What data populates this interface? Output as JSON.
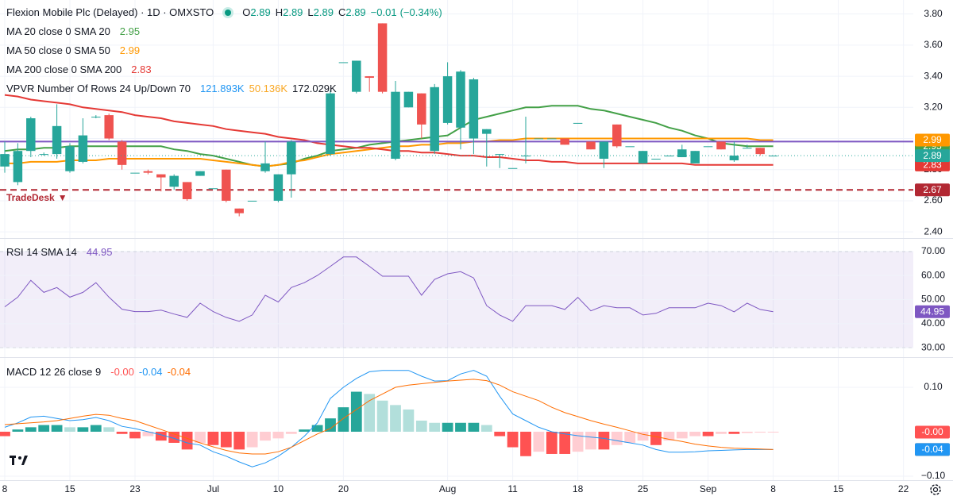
{
  "header": {
    "title": "Flexion Mobile Plc (Delayed) · 1D · OMXSTO",
    "ohlc": [
      {
        "label": "O",
        "value": 2.89
      },
      {
        "label": "H",
        "value": 2.89
      },
      {
        "label": "L",
        "value": 2.89
      },
      {
        "label": "C",
        "value": 2.89
      }
    ],
    "change": [
      {
        "value": -0.01,
        "label": "−0.01"
      },
      {
        "value": -0.34,
        "label": "(−0.34%)"
      }
    ],
    "change_color": "#089981"
  },
  "vpvr": {
    "name": "VPVR Number Of Rows 24 Up/Down 70",
    "values": [
      {
        "value": 121893,
        "label": "121.893K"
      },
      {
        "value": 50136,
        "label": "50.136K"
      },
      {
        "value": 172029,
        "label": "172.029K"
      }
    ],
    "colors": [
      "#2196f3",
      "#f9a825",
      "#131722"
    ]
  },
  "chart_data": [
    {
      "type": "candlestick",
      "categories": [
        "8",
        null,
        null,
        null,
        null,
        "15",
        null,
        null,
        null,
        null,
        "23",
        null,
        null,
        null,
        null,
        null,
        "Jul",
        null,
        null,
        null,
        null,
        "10",
        null,
        null,
        null,
        null,
        "20",
        null,
        null,
        null,
        null,
        null,
        null,
        null,
        "Aug",
        null,
        null,
        null,
        null,
        "11",
        null,
        null,
        null,
        null,
        "18",
        null,
        null,
        null,
        null,
        "25",
        null,
        null,
        null,
        null,
        "Sep",
        null,
        null,
        null,
        null,
        "8",
        null,
        null,
        null,
        null,
        "15",
        null,
        null,
        null,
        null,
        "22"
      ],
      "open": [
        2.82,
        2.72,
        2.92,
        2.9,
        2.9,
        2.79,
        2.85,
        3.14,
        3.15,
        2.98,
        2.78,
        2.79,
        2.77,
        2.69,
        2.72,
        2.76,
        2.68,
        2.8,
        2.55,
        2.6,
        2.79,
        2.6,
        2.77,
        null,
        null,
        2.9,
        3.49,
        3.3,
        3.4,
        3.74,
        2.87,
        3.2,
        3.29,
        2.92,
        3.1,
        3.07,
        3.0,
        3.03,
        2.9,
        2.81,
        2.89,
        3.0,
        3.0,
        3.0,
        3.1,
        2.98,
        2.87,
        3.09,
        2.95,
        2.84,
        2.87,
        2.89,
        2.88,
        2.84,
        2.95,
        2.98,
        2.86,
        2.94,
        2.94,
        2.89,
        null,
        null,
        null,
        null,
        null,
        null,
        null,
        null,
        null,
        null
      ],
      "high": [
        2.98,
        2.97,
        3.14,
        2.91,
        3.22,
        2.97,
        3.13,
        3.15,
        3.16,
        2.99,
        2.78,
        2.8,
        2.77,
        2.77,
        2.72,
        2.79,
        2.68,
        2.8,
        2.55,
        2.6,
        2.98,
        2.77,
        2.99,
        null,
        null,
        3.31,
        3.49,
        3.5,
        3.4,
        3.74,
        3.37,
        3.3,
        3.29,
        3.35,
        3.49,
        3.44,
        3.39,
        3.06,
        2.9,
        2.81,
        3.14,
        3.0,
        3.0,
        3.0,
        3.1,
        2.98,
        2.98,
        3.09,
        2.95,
        2.92,
        2.87,
        2.89,
        2.96,
        2.92,
        2.95,
        2.98,
        2.98,
        2.96,
        2.94,
        2.89,
        null,
        null,
        null,
        null,
        null,
        null,
        null,
        null,
        null,
        null
      ],
      "low": [
        2.78,
        2.7,
        2.88,
        2.89,
        2.87,
        2.78,
        2.84,
        3.13,
        2.99,
        2.8,
        2.78,
        2.77,
        2.66,
        2.67,
        2.6,
        2.76,
        2.68,
        2.59,
        2.5,
        2.6,
        2.78,
        2.59,
        2.62,
        null,
        null,
        2.89,
        3.49,
        3.29,
        3.3,
        3.29,
        2.86,
        3.2,
        3.0,
        2.9,
        3.09,
        2.93,
        2.9,
        2.82,
        2.81,
        2.81,
        2.84,
        3.0,
        3.0,
        2.96,
        3.1,
        2.93,
        2.81,
        2.94,
        2.95,
        2.84,
        2.87,
        2.89,
        2.88,
        2.84,
        2.95,
        2.93,
        2.85,
        2.94,
        2.89,
        2.89,
        null,
        null,
        null,
        null,
        null,
        null,
        null,
        null,
        null,
        null
      ],
      "close": [
        2.9,
        2.92,
        3.13,
        2.9,
        3.08,
        2.95,
        3.02,
        3.14,
        3.0,
        2.83,
        2.78,
        2.78,
        2.75,
        2.76,
        2.61,
        2.79,
        2.68,
        2.6,
        2.52,
        2.6,
        2.84,
        2.77,
        2.98,
        null,
        null,
        3.29,
        3.49,
        3.5,
        3.39,
        3.3,
        3.3,
        3.3,
        3.09,
        3.33,
        3.4,
        3.43,
        3.38,
        3.06,
        2.9,
        2.81,
        2.89,
        3.0,
        3.0,
        2.96,
        3.1,
        2.93,
        2.98,
        2.95,
        2.95,
        2.92,
        2.87,
        2.89,
        2.93,
        2.92,
        2.95,
        2.93,
        2.89,
        2.94,
        2.9,
        2.89,
        null,
        null,
        null,
        null,
        null,
        null,
        null,
        null,
        null,
        null
      ],
      "up_color": "#26a69a",
      "down_color": "#ef5350",
      "ylim": [
        2.36,
        3.89
      ],
      "yticks": [
        {
          "value": 2.4,
          "label": "2.40"
        },
        {
          "value": 2.6,
          "label": "2.60"
        },
        {
          "value": 2.8,
          "label": "2.80"
        },
        {
          "value": 3.0,
          "label": "3.00"
        },
        {
          "value": 3.2,
          "label": "3.20"
        },
        {
          "value": 3.4,
          "label": "3.40"
        },
        {
          "value": 3.6,
          "label": "3.60"
        },
        {
          "value": 3.8,
          "label": "3.80"
        }
      ],
      "grid": true,
      "series": [
        {
          "name": "MA 20 close 0 SMA 20",
          "color": "#43a047",
          "last": 2.95,
          "values": [
            2.92,
            2.93,
            2.93,
            2.94,
            2.94,
            2.95,
            2.95,
            2.95,
            2.95,
            2.95,
            2.95,
            2.95,
            2.95,
            2.93,
            2.92,
            2.9,
            2.89,
            2.87,
            2.85,
            2.83,
            2.82,
            2.83,
            2.84,
            2.87,
            2.89,
            2.92,
            2.93,
            2.94,
            2.96,
            2.97,
            2.98,
            2.99,
            3.0,
            3.01,
            3.02,
            3.07,
            3.12,
            3.14,
            3.16,
            3.18,
            3.2,
            3.2,
            3.21,
            3.21,
            3.21,
            3.19,
            3.18,
            3.16,
            3.14,
            3.12,
            3.1,
            3.07,
            3.05,
            3.02,
            3.0,
            2.97,
            2.96,
            2.95,
            2.95,
            2.95,
            null,
            null,
            null,
            null,
            null,
            null,
            null,
            null,
            null,
            null
          ]
        },
        {
          "name": "MA 50 close 0 SMA 50",
          "color": "#ff9800",
          "last": 2.99,
          "values": [
            2.84,
            2.84,
            2.85,
            2.85,
            2.85,
            2.86,
            2.86,
            2.86,
            2.87,
            2.87,
            2.87,
            2.87,
            2.87,
            2.87,
            2.87,
            2.87,
            2.86,
            2.85,
            2.84,
            2.83,
            2.82,
            2.83,
            2.85,
            2.86,
            2.88,
            2.9,
            2.91,
            2.92,
            2.93,
            2.94,
            2.95,
            2.95,
            2.96,
            2.96,
            2.97,
            2.97,
            2.98,
            2.98,
            2.99,
            2.99,
            3.0,
            3.0,
            3.0,
            3.0,
            3.0,
            3.0,
            3.0,
            3.0,
            3.0,
            3.0,
            3.0,
            3.0,
            3.0,
            3.0,
            3.0,
            3.0,
            3.0,
            3.0,
            2.99,
            2.99,
            null,
            null,
            null,
            null,
            null,
            null,
            null,
            null,
            null,
            null
          ]
        },
        {
          "name": "MA 200 close 0 SMA 200",
          "color": "#e53935",
          "last": 2.83,
          "values": [
            3.28,
            3.27,
            3.25,
            3.24,
            3.23,
            3.22,
            3.2,
            3.19,
            3.18,
            3.17,
            3.15,
            3.14,
            3.13,
            3.11,
            3.1,
            3.09,
            3.08,
            3.06,
            3.05,
            3.04,
            3.03,
            3.01,
            3.0,
            2.99,
            2.97,
            2.96,
            2.95,
            2.94,
            2.94,
            2.93,
            2.92,
            2.92,
            2.91,
            2.91,
            2.9,
            2.89,
            2.89,
            2.88,
            2.88,
            2.87,
            2.86,
            2.86,
            2.85,
            2.85,
            2.84,
            2.84,
            2.84,
            2.84,
            2.84,
            2.84,
            2.84,
            2.84,
            2.84,
            2.83,
            2.83,
            2.83,
            2.83,
            2.83,
            2.83,
            2.83,
            null,
            null,
            null,
            null,
            null,
            null,
            null,
            null,
            null,
            null
          ]
        }
      ],
      "last_color": "#26a69a",
      "lines": [
        {
          "value": 2.98,
          "color": "#7e57c2"
        },
        {
          "name": "TradeDesk",
          "marker": "▼",
          "value": 2.67,
          "color": "#b22833",
          "dashed": true
        }
      ]
    },
    {
      "type": "line",
      "series": [
        {
          "name": "RSI 14 SMA 14",
          "color": "#7e57c2",
          "values": [
            47,
            51,
            58,
            53,
            55,
            51,
            53,
            57,
            51,
            46,
            45,
            45,
            45.6,
            44,
            42.6,
            48.5,
            45,
            42.6,
            41,
            43.6,
            51.8,
            49,
            55,
            57,
            60,
            63.8,
            67.7,
            67.7,
            63.8,
            59.7,
            59.7,
            59.7,
            51.8,
            58.4,
            60.7,
            61.6,
            59,
            47.5,
            43.6,
            41,
            47.5,
            47.5,
            47.5,
            45.9,
            50.9,
            45.3,
            47.5,
            46.6,
            46.6,
            43.6,
            44.3,
            46.6,
            46.6,
            46.6,
            48.5,
            47.5,
            44.9,
            48.5,
            45.9,
            44.95,
            null,
            null,
            null,
            null,
            null,
            null,
            null,
            null,
            null,
            null
          ]
        }
      ],
      "ylim": [
        26.1,
        75.2
      ],
      "yticks": [
        {
          "value": 30,
          "label": "30.00"
        },
        {
          "value": 40,
          "label": "40.00"
        },
        {
          "value": 50,
          "label": "50.00"
        },
        {
          "value": 60,
          "label": "60.00"
        },
        {
          "value": 70,
          "label": "70.00"
        }
      ],
      "band": [
        30,
        70
      ],
      "band_color": "#7e57c2"
    },
    {
      "type": "macd",
      "name": "MACD 12 26 close 9",
      "histogram": {
        "values": [
          -0.01,
          0.005,
          0.01,
          0.015,
          0.015,
          0.01,
          0.01,
          0.015,
          0.01,
          -0.005,
          -0.015,
          -0.01,
          -0.02,
          -0.025,
          -0.04,
          -0.025,
          -0.03,
          -0.035,
          -0.04,
          -0.035,
          -0.02,
          -0.015,
          -0.005,
          0.005,
          0.015,
          0.03,
          0.055,
          0.09,
          0.085,
          0.07,
          0.06,
          0.05,
          0.025,
          0.02,
          0.02,
          0.02,
          0.02,
          0.015,
          -0.01,
          -0.035,
          -0.055,
          -0.045,
          -0.05,
          -0.05,
          -0.045,
          -0.04,
          -0.04,
          -0.03,
          -0.025,
          -0.02,
          -0.03,
          -0.02,
          -0.015,
          -0.01,
          -0.01,
          -0.005,
          -0.005,
          -0.003,
          -0.002,
          -0.001,
          null,
          null,
          null,
          null,
          null,
          null,
          null,
          null,
          null,
          null
        ],
        "last_label": "-0.00",
        "colors": [
          "#26a69a",
          "#b2dfdb",
          "#ffcdd2",
          "#ff5252"
        ]
      },
      "series": [
        {
          "color": "#2196f3",
          "values": [
            0.01,
            0.02,
            0.033,
            0.035,
            0.03,
            0.025,
            0.027,
            0.032,
            0.025,
            0.012,
            0.007,
            0.0,
            -0.007,
            -0.015,
            -0.025,
            -0.03,
            -0.045,
            -0.055,
            -0.068,
            -0.079,
            -0.07,
            -0.055,
            -0.035,
            -0.01,
            0.02,
            0.075,
            0.1,
            0.12,
            0.135,
            0.138,
            0.138,
            0.138,
            0.125,
            0.114,
            0.115,
            0.13,
            0.138,
            0.125,
            0.08,
            0.04,
            0.025,
            0.01,
            0.0,
            -0.005,
            -0.009,
            -0.012,
            -0.015,
            -0.02,
            -0.025,
            -0.03,
            -0.04,
            -0.046,
            -0.046,
            -0.045,
            -0.043,
            -0.042,
            -0.041,
            -0.04,
            -0.04,
            -0.04,
            null,
            null,
            null,
            null,
            null,
            null,
            null,
            null,
            null,
            null
          ]
        },
        {
          "color": "#ff6d00",
          "values": [
            0.016,
            0.018,
            0.02,
            0.022,
            0.025,
            0.03,
            0.035,
            0.039,
            0.037,
            0.03,
            0.025,
            0.015,
            0.005,
            -0.005,
            -0.015,
            -0.025,
            -0.034,
            -0.042,
            -0.048,
            -0.05,
            -0.05,
            -0.045,
            -0.035,
            -0.02,
            -0.005,
            0.007,
            0.03,
            0.05,
            0.07,
            0.085,
            0.1,
            0.105,
            0.108,
            0.111,
            0.114,
            0.116,
            0.118,
            0.115,
            0.105,
            0.09,
            0.08,
            0.07,
            0.055,
            0.043,
            0.034,
            0.025,
            0.017,
            0.01,
            0.002,
            -0.006,
            -0.011,
            -0.017,
            -0.022,
            -0.028,
            -0.032,
            -0.035,
            -0.037,
            -0.038,
            -0.039,
            -0.04,
            null,
            null,
            null,
            null,
            null,
            null,
            null,
            null,
            null,
            null
          ]
        }
      ],
      "ylim": [
        -0.109,
        0.166
      ],
      "yticks": [
        {
          "value": 0.1,
          "label": "0.10"
        },
        {
          "value": -0.1,
          "label": "−0.10"
        }
      ]
    }
  ]
}
